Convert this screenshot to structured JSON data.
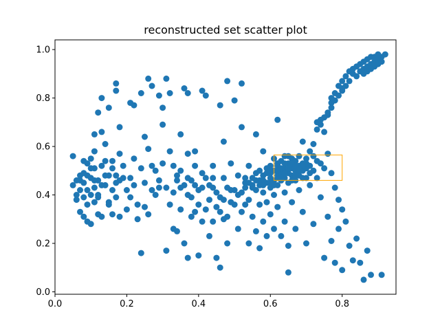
{
  "chart_data": {
    "type": "scatter",
    "title": "reconstructed set scatter plot",
    "xlabel": "",
    "ylabel": "",
    "xlim": [
      0.0,
      0.95
    ],
    "ylim": [
      -0.01,
      1.04
    ],
    "xticks": [
      "0.0",
      "0.2",
      "0.4",
      "0.6",
      "0.8"
    ],
    "yticks": [
      "0.0",
      "0.2",
      "0.4",
      "0.6",
      "0.8",
      "1.0"
    ],
    "xtick_values": [
      0.0,
      0.2,
      0.4,
      0.6,
      0.8
    ],
    "ytick_values": [
      0.0,
      0.2,
      0.4,
      0.6,
      0.8,
      1.0
    ],
    "grid": false,
    "marker_color": "#1f77b4",
    "highlight_box_color": "#ffa500",
    "highlight_box": {
      "x": [
        0.61,
        0.8
      ],
      "y": [
        0.46,
        0.565
      ]
    },
    "points": [
      [
        0.05,
        0.56
      ],
      [
        0.05,
        0.44
      ],
      [
        0.06,
        0.4
      ],
      [
        0.06,
        0.38
      ],
      [
        0.07,
        0.46
      ],
      [
        0.07,
        0.42
      ],
      [
        0.07,
        0.33
      ],
      [
        0.08,
        0.54
      ],
      [
        0.08,
        0.49
      ],
      [
        0.08,
        0.45
      ],
      [
        0.08,
        0.39
      ],
      [
        0.08,
        0.31
      ],
      [
        0.09,
        0.53
      ],
      [
        0.09,
        0.48
      ],
      [
        0.09,
        0.36
      ],
      [
        0.09,
        0.29
      ],
      [
        0.1,
        0.55
      ],
      [
        0.1,
        0.47
      ],
      [
        0.1,
        0.4
      ],
      [
        0.1,
        0.28
      ],
      [
        0.11,
        0.65
      ],
      [
        0.11,
        0.58
      ],
      [
        0.11,
        0.51
      ],
      [
        0.11,
        0.43
      ],
      [
        0.11,
        0.37
      ],
      [
        0.12,
        0.74
      ],
      [
        0.12,
        0.46
      ],
      [
        0.12,
        0.32
      ],
      [
        0.12,
        0.4
      ],
      [
        0.13,
        0.8
      ],
      [
        0.13,
        0.66
      ],
      [
        0.13,
        0.52
      ],
      [
        0.13,
        0.31
      ],
      [
        0.14,
        0.61
      ],
      [
        0.14,
        0.54
      ],
      [
        0.14,
        0.44
      ],
      [
        0.15,
        0.76
      ],
      [
        0.15,
        0.48
      ],
      [
        0.15,
        0.37
      ],
      [
        0.16,
        0.54
      ],
      [
        0.16,
        0.42
      ],
      [
        0.17,
        0.86
      ],
      [
        0.17,
        0.83
      ],
      [
        0.17,
        0.48
      ],
      [
        0.17,
        0.39
      ],
      [
        0.18,
        0.68
      ],
      [
        0.18,
        0.57
      ],
      [
        0.18,
        0.46
      ],
      [
        0.18,
        0.31
      ],
      [
        0.19,
        0.52
      ],
      [
        0.2,
        0.42
      ],
      [
        0.2,
        0.34
      ],
      [
        0.21,
        0.78
      ],
      [
        0.21,
        0.47
      ],
      [
        0.22,
        0.77
      ],
      [
        0.22,
        0.55
      ],
      [
        0.22,
        0.44
      ],
      [
        0.23,
        0.36
      ],
      [
        0.24,
        0.82
      ],
      [
        0.24,
        0.16
      ],
      [
        0.24,
        0.51
      ],
      [
        0.25,
        0.64
      ],
      [
        0.25,
        0.45
      ],
      [
        0.25,
        0.35
      ],
      [
        0.26,
        0.88
      ],
      [
        0.26,
        0.59
      ],
      [
        0.26,
        0.32
      ],
      [
        0.27,
        0.85
      ],
      [
        0.27,
        0.42
      ],
      [
        0.28,
        0.5
      ],
      [
        0.29,
        0.81
      ],
      [
        0.29,
        0.46
      ],
      [
        0.3,
        0.76
      ],
      [
        0.3,
        0.69
      ],
      [
        0.3,
        0.53
      ],
      [
        0.31,
        0.88
      ],
      [
        0.31,
        0.43
      ],
      [
        0.31,
        0.17
      ],
      [
        0.32,
        0.82
      ],
      [
        0.32,
        0.58
      ],
      [
        0.32,
        0.36
      ],
      [
        0.33,
        0.41
      ],
      [
        0.34,
        0.48
      ],
      [
        0.34,
        0.25
      ],
      [
        0.35,
        0.65
      ],
      [
        0.35,
        0.5
      ],
      [
        0.35,
        0.34
      ],
      [
        0.36,
        0.84
      ],
      [
        0.36,
        0.44
      ],
      [
        0.36,
        0.2
      ],
      [
        0.37,
        0.82
      ],
      [
        0.37,
        0.57
      ],
      [
        0.37,
        0.47
      ],
      [
        0.37,
        0.14
      ],
      [
        0.38,
        0.39
      ],
      [
        0.38,
        0.31
      ],
      [
        0.39,
        0.58
      ],
      [
        0.39,
        0.52
      ],
      [
        0.39,
        0.44
      ],
      [
        0.4,
        0.36
      ],
      [
        0.4,
        0.15
      ],
      [
        0.41,
        0.83
      ],
      [
        0.41,
        0.49
      ],
      [
        0.41,
        0.29
      ],
      [
        0.42,
        0.81
      ],
      [
        0.42,
        0.47
      ],
      [
        0.43,
        0.38
      ],
      [
        0.43,
        0.23
      ],
      [
        0.44,
        0.52
      ],
      [
        0.44,
        0.43
      ],
      [
        0.45,
        0.35
      ],
      [
        0.45,
        0.14
      ],
      [
        0.46,
        0.77
      ],
      [
        0.46,
        0.39
      ],
      [
        0.46,
        0.1
      ],
      [
        0.47,
        0.62
      ],
      [
        0.47,
        0.47
      ],
      [
        0.47,
        0.3
      ],
      [
        0.48,
        0.87
      ],
      [
        0.48,
        0.43
      ],
      [
        0.48,
        0.2
      ],
      [
        0.49,
        0.53
      ],
      [
        0.49,
        0.37
      ],
      [
        0.5,
        0.79
      ],
      [
        0.5,
        0.42
      ],
      [
        0.51,
        0.48
      ],
      [
        0.51,
        0.26
      ],
      [
        0.52,
        0.86
      ],
      [
        0.52,
        0.68
      ],
      [
        0.52,
        0.33
      ],
      [
        0.53,
        0.45
      ],
      [
        0.53,
        0.43
      ],
      [
        0.54,
        0.52
      ],
      [
        0.54,
        0.38
      ],
      [
        0.54,
        0.2
      ],
      [
        0.55,
        0.47
      ],
      [
        0.55,
        0.44
      ],
      [
        0.55,
        0.31
      ],
      [
        0.56,
        0.65
      ],
      [
        0.56,
        0.49
      ],
      [
        0.56,
        0.42
      ],
      [
        0.56,
        0.25
      ],
      [
        0.57,
        0.46
      ],
      [
        0.57,
        0.44
      ],
      [
        0.57,
        0.36
      ],
      [
        0.57,
        0.18
      ],
      [
        0.58,
        0.58
      ],
      [
        0.58,
        0.48
      ],
      [
        0.58,
        0.41
      ],
      [
        0.58,
        0.29
      ],
      [
        0.59,
        0.49
      ],
      [
        0.59,
        0.45
      ],
      [
        0.59,
        0.37
      ],
      [
        0.59,
        0.23
      ],
      [
        0.6,
        0.52
      ],
      [
        0.6,
        0.47
      ],
      [
        0.6,
        0.43
      ],
      [
        0.6,
        0.32
      ],
      [
        0.61,
        0.55
      ],
      [
        0.61,
        0.5
      ],
      [
        0.61,
        0.46
      ],
      [
        0.61,
        0.4
      ],
      [
        0.61,
        0.26
      ],
      [
        0.62,
        0.71
      ],
      [
        0.62,
        0.52
      ],
      [
        0.62,
        0.48
      ],
      [
        0.62,
        0.44
      ],
      [
        0.62,
        0.35
      ],
      [
        0.63,
        0.54
      ],
      [
        0.63,
        0.49
      ],
      [
        0.63,
        0.46
      ],
      [
        0.63,
        0.23
      ],
      [
        0.64,
        0.56
      ],
      [
        0.64,
        0.51
      ],
      [
        0.64,
        0.47
      ],
      [
        0.64,
        0.41
      ],
      [
        0.64,
        0.29
      ],
      [
        0.65,
        0.53
      ],
      [
        0.65,
        0.49
      ],
      [
        0.65,
        0.45
      ],
      [
        0.65,
        0.19
      ],
      [
        0.65,
        0.08
      ],
      [
        0.66,
        0.55
      ],
      [
        0.66,
        0.51
      ],
      [
        0.66,
        0.48
      ],
      [
        0.66,
        0.37
      ],
      [
        0.67,
        0.54
      ],
      [
        0.67,
        0.5
      ],
      [
        0.67,
        0.46
      ],
      [
        0.67,
        0.26
      ],
      [
        0.68,
        0.56
      ],
      [
        0.68,
        0.52
      ],
      [
        0.68,
        0.48
      ],
      [
        0.68,
        0.42
      ],
      [
        0.69,
        0.62
      ],
      [
        0.69,
        0.53
      ],
      [
        0.69,
        0.5
      ],
      [
        0.69,
        0.33
      ],
      [
        0.7,
        0.55
      ],
      [
        0.7,
        0.51
      ],
      [
        0.7,
        0.47
      ],
      [
        0.7,
        0.2
      ],
      [
        0.71,
        0.58
      ],
      [
        0.71,
        0.52
      ],
      [
        0.71,
        0.44
      ],
      [
        0.72,
        0.61
      ],
      [
        0.72,
        0.56
      ],
      [
        0.72,
        0.5
      ],
      [
        0.72,
        0.28
      ],
      [
        0.73,
        0.67
      ],
      [
        0.73,
        0.54
      ],
      [
        0.73,
        0.47
      ],
      [
        0.74,
        0.69
      ],
      [
        0.74,
        0.53
      ],
      [
        0.74,
        0.39
      ],
      [
        0.75,
        0.66
      ],
      [
        0.75,
        0.51
      ],
      [
        0.75,
        0.14
      ],
      [
        0.76,
        0.73
      ],
      [
        0.76,
        0.57
      ],
      [
        0.76,
        0.31
      ],
      [
        0.77,
        0.78
      ],
      [
        0.77,
        0.49
      ],
      [
        0.77,
        0.21
      ],
      [
        0.78,
        0.82
      ],
      [
        0.78,
        0.43
      ],
      [
        0.78,
        0.12
      ],
      [
        0.79,
        0.85
      ],
      [
        0.79,
        0.38
      ],
      [
        0.79,
        0.26
      ],
      [
        0.8,
        0.87
      ],
      [
        0.8,
        0.34
      ],
      [
        0.8,
        0.09
      ],
      [
        0.81,
        0.89
      ],
      [
        0.81,
        0.29
      ],
      [
        0.82,
        0.91
      ],
      [
        0.82,
        0.19
      ],
      [
        0.83,
        0.92
      ],
      [
        0.83,
        0.13
      ],
      [
        0.84,
        0.93
      ],
      [
        0.84,
        0.22
      ],
      [
        0.85,
        0.94
      ],
      [
        0.85,
        0.91
      ],
      [
        0.85,
        0.12
      ],
      [
        0.86,
        0.95
      ],
      [
        0.86,
        0.92
      ],
      [
        0.86,
        0.05
      ],
      [
        0.87,
        0.96
      ],
      [
        0.87,
        0.93
      ],
      [
        0.87,
        0.17
      ],
      [
        0.88,
        0.97
      ],
      [
        0.88,
        0.94
      ],
      [
        0.88,
        0.07
      ],
      [
        0.89,
        0.97
      ],
      [
        0.89,
        0.95
      ],
      [
        0.9,
        0.98
      ],
      [
        0.9,
        0.96
      ],
      [
        0.91,
        0.97
      ],
      [
        0.91,
        0.07
      ],
      [
        0.92,
        0.98
      ],
      [
        0.83,
        0.9
      ],
      [
        0.84,
        0.89
      ],
      [
        0.82,
        0.87
      ],
      [
        0.81,
        0.85
      ],
      [
        0.86,
        0.9
      ],
      [
        0.87,
        0.91
      ],
      [
        0.89,
        0.93
      ],
      [
        0.9,
        0.94
      ],
      [
        0.91,
        0.95
      ],
      [
        0.88,
        0.92
      ],
      [
        0.78,
        0.79
      ],
      [
        0.77,
        0.76
      ],
      [
        0.76,
        0.74
      ],
      [
        0.79,
        0.81
      ],
      [
        0.8,
        0.83
      ],
      [
        0.75,
        0.72
      ],
      [
        0.74,
        0.71
      ],
      [
        0.73,
        0.7
      ],
      [
        0.77,
        0.8
      ],
      [
        0.8,
        0.84
      ],
      [
        0.57,
        0.5
      ],
      [
        0.58,
        0.46
      ],
      [
        0.59,
        0.51
      ],
      [
        0.6,
        0.49
      ],
      [
        0.62,
        0.53
      ],
      [
        0.63,
        0.51
      ],
      [
        0.65,
        0.56
      ],
      [
        0.66,
        0.53
      ],
      [
        0.67,
        0.52
      ],
      [
        0.68,
        0.5
      ],
      [
        0.69,
        0.47
      ],
      [
        0.7,
        0.53
      ],
      [
        0.71,
        0.49
      ],
      [
        0.64,
        0.53
      ],
      [
        0.62,
        0.47
      ],
      [
        0.61,
        0.44
      ],
      [
        0.6,
        0.45
      ],
      [
        0.58,
        0.44
      ],
      [
        0.56,
        0.46
      ],
      [
        0.55,
        0.43
      ],
      [
        0.54,
        0.45
      ],
      [
        0.53,
        0.47
      ],
      [
        0.64,
        0.49
      ],
      [
        0.66,
        0.46
      ],
      [
        0.67,
        0.48
      ],
      [
        0.69,
        0.52
      ],
      [
        0.65,
        0.51
      ],
      [
        0.63,
        0.47
      ],
      [
        0.62,
        0.5
      ],
      [
        0.6,
        0.5
      ],
      [
        0.15,
        0.36
      ],
      [
        0.16,
        0.32
      ],
      [
        0.19,
        0.47
      ],
      [
        0.21,
        0.39
      ],
      [
        0.23,
        0.3
      ],
      [
        0.27,
        0.52
      ],
      [
        0.28,
        0.4
      ],
      [
        0.29,
        0.43
      ],
      [
        0.33,
        0.26
      ],
      [
        0.34,
        0.46
      ],
      [
        0.38,
        0.46
      ],
      [
        0.39,
        0.33
      ],
      [
        0.4,
        0.42
      ],
      [
        0.42,
        0.34
      ],
      [
        0.43,
        0.44
      ],
      [
        0.44,
        0.29
      ],
      [
        0.45,
        0.41
      ],
      [
        0.46,
        0.33
      ],
      [
        0.49,
        0.42
      ],
      [
        0.5,
        0.36
      ],
      [
        0.51,
        0.4
      ],
      [
        0.52,
        0.41
      ],
      [
        0.53,
        0.36
      ],
      [
        0.48,
        0.31
      ],
      [
        0.47,
        0.38
      ],
      [
        0.44,
        0.47
      ],
      [
        0.41,
        0.43
      ],
      [
        0.37,
        0.4
      ],
      [
        0.35,
        0.43
      ],
      [
        0.33,
        0.52
      ],
      [
        0.1,
        0.51
      ],
      [
        0.12,
        0.39
      ],
      [
        0.14,
        0.48
      ],
      [
        0.13,
        0.44
      ],
      [
        0.09,
        0.42
      ],
      [
        0.07,
        0.48
      ],
      [
        0.06,
        0.46
      ],
      [
        0.11,
        0.46
      ],
      [
        0.16,
        0.51
      ],
      [
        0.17,
        0.45
      ]
    ]
  }
}
